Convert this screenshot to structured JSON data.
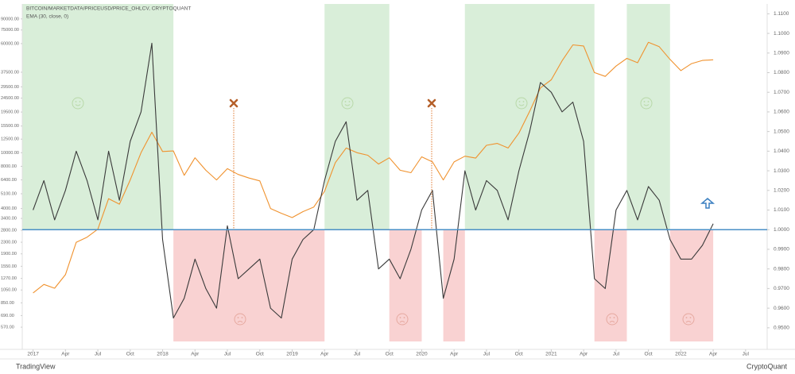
{
  "chart_data": {
    "type": "line",
    "title": "BITCOIN/MARKETDATA/PRICEUSD/PRICE_OHLCV, CRYPTOQUANT",
    "subtitle": "EMA (30, close, 0)",
    "x": [
      "2017-01",
      "2017-02",
      "2017-03",
      "2017-04",
      "2017-05",
      "2017-06",
      "2017-07",
      "2017-08",
      "2017-09",
      "2017-10",
      "2017-11",
      "2017-12",
      "2018-01",
      "2018-02",
      "2018-03",
      "2018-04",
      "2018-05",
      "2018-06",
      "2018-07",
      "2018-08",
      "2018-09",
      "2018-10",
      "2018-11",
      "2018-12",
      "2019-01",
      "2019-02",
      "2019-03",
      "2019-04",
      "2019-05",
      "2019-06",
      "2019-07",
      "2019-08",
      "2019-09",
      "2019-10",
      "2019-11",
      "2019-12",
      "2020-01",
      "2020-02",
      "2020-03",
      "2020-04",
      "2020-05",
      "2020-06",
      "2020-07",
      "2020-08",
      "2020-09",
      "2020-10",
      "2020-11",
      "2020-12",
      "2021-01",
      "2021-02",
      "2021-03",
      "2021-04",
      "2021-05",
      "2021-06",
      "2021-07",
      "2021-08",
      "2021-09",
      "2021-10",
      "2021-11",
      "2021-12",
      "2022-01",
      "2022-02",
      "2022-03",
      "2022-04"
    ],
    "xlim": [
      "2016-12",
      "2022-09"
    ],
    "xticks": [
      {
        "value": "2017-01",
        "label": "2017"
      },
      {
        "value": "2017-04",
        "label": "Apr"
      },
      {
        "value": "2017-07",
        "label": "Jul"
      },
      {
        "value": "2017-10",
        "label": "Oct"
      },
      {
        "value": "2018-01",
        "label": "2018"
      },
      {
        "value": "2018-04",
        "label": "Apr"
      },
      {
        "value": "2018-07",
        "label": "Jul"
      },
      {
        "value": "2018-10",
        "label": "Oct"
      },
      {
        "value": "2019-01",
        "label": "2019"
      },
      {
        "value": "2019-04",
        "label": "Apr"
      },
      {
        "value": "2019-07",
        "label": "Jul"
      },
      {
        "value": "2019-10",
        "label": "Oct"
      },
      {
        "value": "2020-01",
        "label": "2020"
      },
      {
        "value": "2020-04",
        "label": "Apr"
      },
      {
        "value": "2020-07",
        "label": "Jul"
      },
      {
        "value": "2020-10",
        "label": "Oct"
      },
      {
        "value": "2021-01",
        "label": "2021"
      },
      {
        "value": "2021-04",
        "label": "Apr"
      },
      {
        "value": "2021-07",
        "label": "Jul"
      },
      {
        "value": "2021-10",
        "label": "Oct"
      },
      {
        "value": "2022-01",
        "label": "2022"
      },
      {
        "value": "2022-04",
        "label": "Apr"
      },
      {
        "value": "2022-07",
        "label": "Jul"
      }
    ],
    "ylim": [
      396,
      115000
    ],
    "log_y": true,
    "yticks": [
      {
        "value": 90000,
        "label": "90000.00"
      },
      {
        "value": 75000,
        "label": "75000.00"
      },
      {
        "value": 60000,
        "label": "60000.00"
      },
      {
        "value": 37500,
        "label": "37500.00"
      },
      {
        "value": 29500,
        "label": "29500.00"
      },
      {
        "value": 24500,
        "label": "24500.00"
      },
      {
        "value": 19500,
        "label": "19500.00"
      },
      {
        "value": 15500,
        "label": "15500.00"
      },
      {
        "value": 12500,
        "label": "12500.00"
      },
      {
        "value": 10000,
        "label": "10000.00"
      },
      {
        "value": 8000,
        "label": "8000.00"
      },
      {
        "value": 6400,
        "label": "6400.00"
      },
      {
        "value": 5100,
        "label": "5100.00"
      },
      {
        "value": 4000,
        "label": "4000.00"
      },
      {
        "value": 3400,
        "label": "3400.00"
      },
      {
        "value": 2800,
        "label": "2800.00"
      },
      {
        "value": 2300,
        "label": "2300.00"
      },
      {
        "value": 1900,
        "label": "1900.00"
      },
      {
        "value": 1550,
        "label": "1550.00"
      },
      {
        "value": 1270,
        "label": "1270.00"
      },
      {
        "value": 1050,
        "label": "1050.00"
      },
      {
        "value": 850,
        "label": "850.00"
      },
      {
        "value": 690,
        "label": "690.00"
      },
      {
        "value": 570,
        "label": "570.00"
      }
    ],
    "y2lim": [
      0.939,
      1.115
    ],
    "y2ticks": [
      {
        "value": 1.11,
        "label": "1.1100"
      },
      {
        "value": 1.1,
        "label": "1.1000"
      },
      {
        "value": 1.09,
        "label": "1.0900"
      },
      {
        "value": 1.08,
        "label": "1.0800"
      },
      {
        "value": 1.07,
        "label": "1.0700"
      },
      {
        "value": 1.06,
        "label": "1.0600"
      },
      {
        "value": 1.05,
        "label": "1.0500"
      },
      {
        "value": 1.04,
        "label": "1.0400"
      },
      {
        "value": 1.03,
        "label": "1.0300"
      },
      {
        "value": 1.02,
        "label": "1.0200"
      },
      {
        "value": 1.01,
        "label": "1.0100"
      },
      {
        "value": 1,
        "label": "1.0000"
      },
      {
        "value": 0.99,
        "label": "0.9900"
      },
      {
        "value": 0.98,
        "label": "0.9800"
      },
      {
        "value": 0.97,
        "label": "0.9700"
      },
      {
        "value": 0.96,
        "label": "0.9600"
      },
      {
        "value": 0.95,
        "label": "0.9500"
      }
    ],
    "reference_line": {
      "value": 1,
      "axis": "y2",
      "color": "#4a8fc7"
    },
    "shaded_regions": [
      {
        "start": "2016-12",
        "end": "2018-02",
        "color": "#d9eed9",
        "side": "above"
      },
      {
        "start": "2018-02",
        "end": "2019-04",
        "color": "#f9d2d2",
        "side": "below"
      },
      {
        "start": "2019-04",
        "end": "2019-10",
        "color": "#d9eed9",
        "side": "above"
      },
      {
        "start": "2019-10",
        "end": "2020-01",
        "color": "#f9d2d2",
        "side": "below"
      },
      {
        "start": "2020-03",
        "end": "2020-05",
        "color": "#f9d2d2",
        "side": "below"
      },
      {
        "start": "2020-05",
        "end": "2021-05",
        "color": "#d9eed9",
        "side": "above"
      },
      {
        "start": "2021-05",
        "end": "2021-08",
        "color": "#f9d2d2",
        "side": "below"
      },
      {
        "start": "2021-08",
        "end": "2021-12",
        "color": "#d9eed9",
        "side": "above"
      },
      {
        "start": "2021-12",
        "end": "2022-04",
        "color": "#f9d2d2",
        "side": "below"
      }
    ],
    "series": [
      {
        "name": "PRICEUSD",
        "color": "#f0922e",
        "values": [
          1000,
          1150,
          1080,
          1350,
          2300,
          2500,
          2850,
          4700,
          4300,
          6400,
          10000,
          14000,
          10200,
          10300,
          6900,
          9200,
          7500,
          6400,
          7700,
          7000,
          6600,
          6300,
          4000,
          3700,
          3450,
          3800,
          4100,
          5300,
          8500,
          10800,
          10000,
          9600,
          8300,
          9200,
          7500,
          7200,
          9350,
          8600,
          6400,
          8600,
          9450,
          9150,
          11300,
          11650,
          10800,
          13800,
          19700,
          29000,
          33100,
          45200,
          58800,
          57700,
          37300,
          35000,
          41500,
          47100,
          43800,
          61300,
          57000,
          46300,
          38500,
          43200,
          45500,
          46000
        ]
      },
      {
        "name": "EMA (30, close, 0)",
        "color": "#3a3a3a",
        "axis": "y2",
        "values": [
          1.01,
          1.025,
          1.005,
          1.02,
          1.04,
          1.025,
          1.005,
          1.04,
          1.015,
          1.045,
          1.06,
          1.095,
          0.995,
          0.955,
          0.965,
          0.985,
          0.97,
          0.96,
          1.002,
          0.975,
          0.98,
          0.985,
          0.96,
          0.955,
          0.985,
          0.995,
          1.0,
          1.025,
          1.045,
          1.055,
          1.015,
          1.02,
          0.98,
          0.985,
          0.975,
          0.99,
          1.01,
          1.02,
          0.965,
          0.985,
          1.03,
          1.01,
          1.025,
          1.02,
          1.005,
          1.03,
          1.05,
          1.075,
          1.07,
          1.06,
          1.065,
          1.045,
          0.975,
          0.97,
          1.01,
          1.02,
          1.005,
          1.022,
          1.015,
          0.995,
          0.985,
          0.985,
          0.992,
          1.003
        ]
      }
    ]
  },
  "footer": {
    "left": "TradingView",
    "right": "CryptoQuant"
  }
}
